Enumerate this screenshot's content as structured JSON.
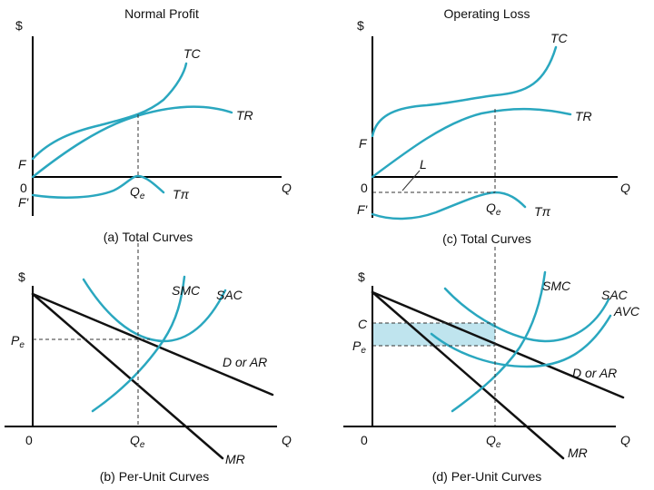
{
  "titles": {
    "left": "Normal Profit",
    "right": "Operating Loss"
  },
  "captions": {
    "a": "(a) Total Curves",
    "b": "(b) Per-Unit Curves",
    "c": "(c) Total Curves",
    "d": "(d) Per-Unit Curves"
  },
  "axis": {
    "dollar": "$",
    "quantity": "Q",
    "origin": "0"
  },
  "labels": {
    "tc": "TC",
    "tr": "TR",
    "f": "F",
    "f_prime": "F'",
    "q": "Q",
    "q_sub": "e",
    "t": "T",
    "pi": "π",
    "l": "L",
    "smc": "SMC",
    "sac": "SAC",
    "avc": "AVC",
    "dar": "D or AR",
    "mr": "MR",
    "p": "P",
    "p_sub": "e",
    "c": "C"
  },
  "colors": {
    "curve": "#2aa7bf",
    "loss_area": "#bfe4ee",
    "axis": "#000000"
  }
}
